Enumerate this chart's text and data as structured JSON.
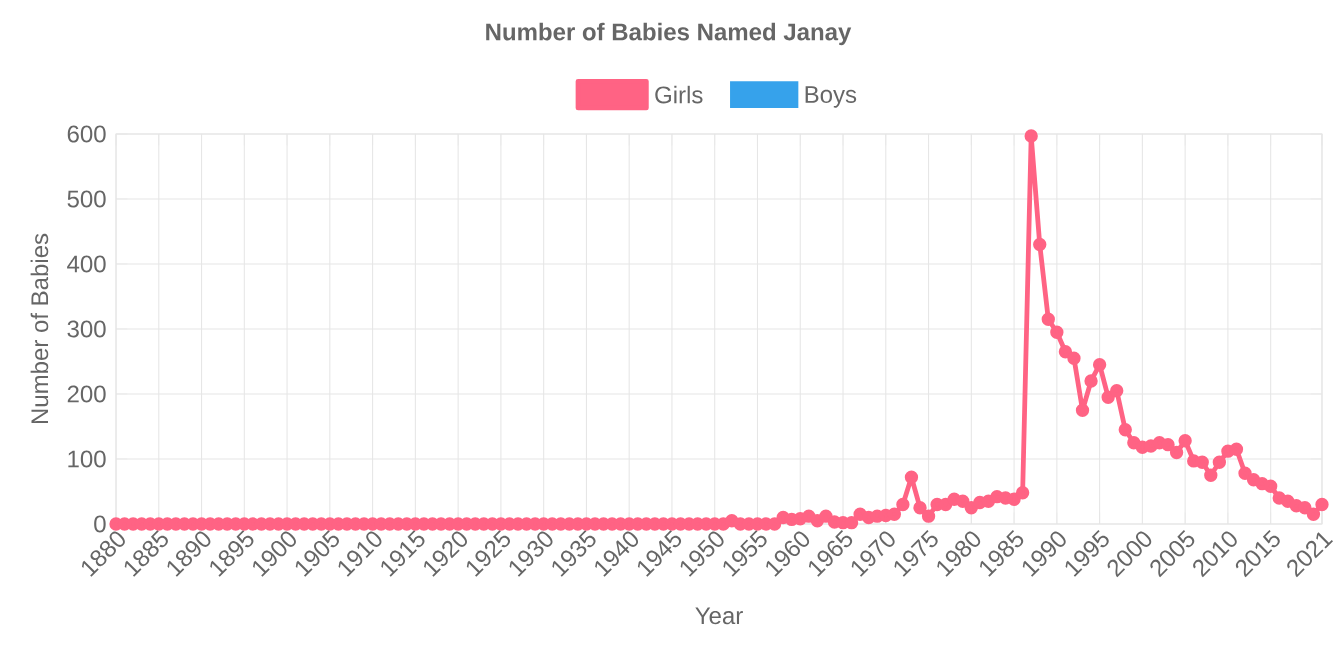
{
  "chart_data": {
    "type": "line",
    "title": "Number of Babies Named Janay",
    "xlabel": "Year",
    "ylabel": "Number of Babies",
    "x": [
      1880,
      1881,
      1882,
      1883,
      1884,
      1885,
      1886,
      1887,
      1888,
      1889,
      1890,
      1891,
      1892,
      1893,
      1894,
      1895,
      1896,
      1897,
      1898,
      1899,
      1900,
      1901,
      1902,
      1903,
      1904,
      1905,
      1906,
      1907,
      1908,
      1909,
      1910,
      1911,
      1912,
      1913,
      1914,
      1915,
      1916,
      1917,
      1918,
      1919,
      1920,
      1921,
      1922,
      1923,
      1924,
      1925,
      1926,
      1927,
      1928,
      1929,
      1930,
      1931,
      1932,
      1933,
      1934,
      1935,
      1936,
      1937,
      1938,
      1939,
      1940,
      1941,
      1942,
      1943,
      1944,
      1945,
      1946,
      1947,
      1948,
      1949,
      1950,
      1951,
      1952,
      1953,
      1954,
      1955,
      1956,
      1957,
      1958,
      1959,
      1960,
      1961,
      1962,
      1963,
      1964,
      1965,
      1966,
      1967,
      1968,
      1969,
      1970,
      1971,
      1972,
      1973,
      1974,
      1975,
      1976,
      1977,
      1978,
      1979,
      1980,
      1981,
      1982,
      1983,
      1984,
      1985,
      1986,
      1987,
      1988,
      1989,
      1990,
      1991,
      1992,
      1993,
      1994,
      1995,
      1996,
      1997,
      1998,
      1999,
      2000,
      2001,
      2002,
      2003,
      2004,
      2005,
      2006,
      2007,
      2008,
      2009,
      2010,
      2011,
      2012,
      2013,
      2014,
      2015,
      2016,
      2017,
      2018,
      2019,
      2020,
      2021
    ],
    "series": [
      {
        "name": "Girls",
        "color": "#ff6384",
        "values": [
          0,
          0,
          0,
          0,
          0,
          0,
          0,
          0,
          0,
          0,
          0,
          0,
          0,
          0,
          0,
          0,
          0,
          0,
          0,
          0,
          0,
          0,
          0,
          0,
          0,
          0,
          0,
          0,
          0,
          0,
          0,
          0,
          0,
          0,
          0,
          0,
          0,
          0,
          0,
          0,
          0,
          0,
          0,
          0,
          0,
          0,
          0,
          0,
          0,
          0,
          0,
          0,
          0,
          0,
          0,
          0,
          0,
          0,
          0,
          0,
          0,
          0,
          0,
          0,
          0,
          0,
          0,
          0,
          0,
          0,
          0,
          0,
          5,
          0,
          0,
          0,
          0,
          0,
          10,
          7,
          8,
          12,
          5,
          12,
          3,
          2,
          2,
          15,
          10,
          12,
          13,
          15,
          30,
          72,
          25,
          12,
          30,
          30,
          38,
          35,
          25,
          33,
          35,
          42,
          40,
          38,
          48,
          597,
          430,
          315,
          295,
          265,
          255,
          175,
          220,
          245,
          195,
          205,
          145,
          125,
          118,
          120,
          125,
          122,
          110,
          128,
          97,
          95,
          75,
          95,
          112,
          115,
          78,
          68,
          62,
          58,
          40,
          35,
          28,
          25,
          15,
          30
        ]
      },
      {
        "name": "Boys",
        "color": "#36a2eb",
        "values": [
          null,
          null,
          null,
          null,
          null,
          null,
          null,
          null,
          null,
          null,
          null,
          null,
          null,
          null,
          null,
          null,
          null,
          null,
          null,
          null,
          null,
          null,
          null,
          null,
          null,
          null,
          null,
          null,
          null,
          null,
          null,
          null,
          null,
          null,
          null,
          null,
          null,
          null,
          null,
          null,
          null,
          null,
          null,
          null,
          null,
          null,
          null,
          null,
          null,
          null,
          null,
          null,
          null,
          null,
          null,
          null,
          null,
          null,
          null,
          null,
          null,
          null,
          null,
          null,
          null,
          null,
          null,
          null,
          null,
          null,
          null,
          null,
          null,
          null,
          null,
          null,
          null,
          null,
          null,
          null,
          null,
          null,
          null,
          null,
          null,
          null,
          null,
          null,
          null,
          null,
          null,
          null,
          null,
          null,
          null,
          null,
          null,
          null,
          null,
          null,
          null,
          null,
          null,
          null,
          null,
          null,
          null,
          null,
          null,
          null,
          null,
          null,
          null,
          null,
          null,
          null,
          null,
          null,
          null,
          null,
          null,
          null,
          null,
          null,
          null,
          null,
          null,
          null,
          null,
          null,
          null,
          null,
          null,
          null,
          null,
          null,
          null,
          null,
          null,
          null,
          null,
          null
        ]
      }
    ],
    "xlim": [
      1880,
      2021
    ],
    "xticks": [
      1880,
      1885,
      1890,
      1895,
      1900,
      1905,
      1910,
      1915,
      1920,
      1925,
      1930,
      1935,
      1940,
      1945,
      1950,
      1955,
      1960,
      1965,
      1970,
      1975,
      1980,
      1985,
      1990,
      1995,
      2000,
      2005,
      2010,
      2015,
      2021
    ],
    "ylim": [
      0,
      600
    ],
    "yticks": [
      0,
      100,
      200,
      300,
      400,
      500,
      600
    ],
    "grid": true,
    "legend": "top",
    "marker": "circle",
    "line_style": "solid"
  }
}
